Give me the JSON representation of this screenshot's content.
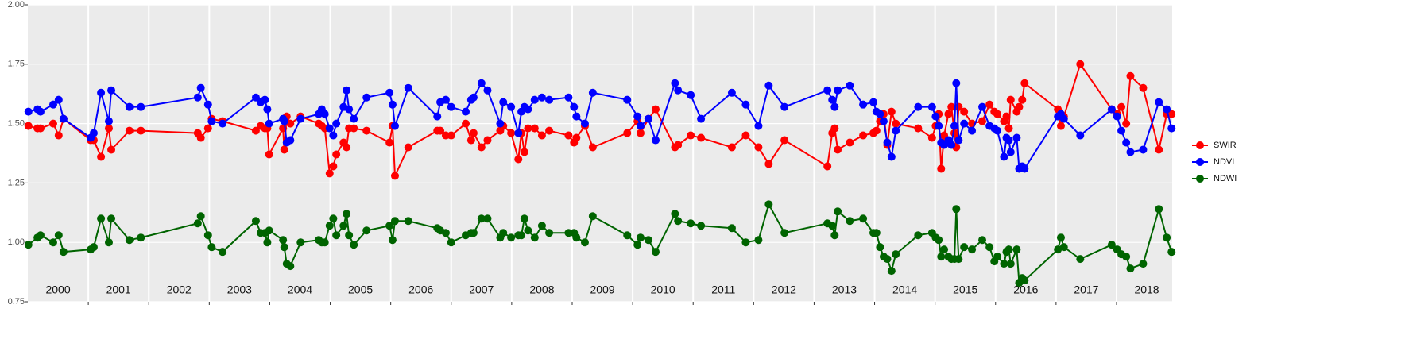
{
  "chart_data": {
    "type": "line",
    "x": [
      2000.01,
      2000.16,
      2000.21,
      2000.42,
      2000.51,
      2000.59,
      2001.04,
      2001.09,
      2001.21,
      2001.34,
      2001.38,
      2001.68,
      2001.87,
      2002.81,
      2002.86,
      2002.98,
      2003.04,
      2003.22,
      2003.77,
      2003.85,
      2003.92,
      2003.96,
      2003.99,
      2004.22,
      2004.24,
      2004.28,
      2004.34,
      2004.51,
      2004.81,
      2004.86,
      2004.91,
      2004.99,
      2005.05,
      2005.1,
      2005.22,
      2005.27,
      2005.31,
      2005.39,
      2005.6,
      2005.98,
      2006.03,
      2006.07,
      2006.29,
      2006.77,
      2006.82,
      2006.91,
      2007.0,
      2007.24,
      2007.33,
      2007.37,
      2007.5,
      2007.6,
      2007.81,
      2007.86,
      2007.99,
      2008.11,
      2008.16,
      2008.21,
      2008.27,
      2008.38,
      2008.5,
      2008.62,
      2008.94,
      2009.03,
      2009.07,
      2009.21,
      2009.34,
      2009.91,
      2010.08,
      2010.13,
      2010.26,
      2010.38,
      2010.7,
      2010.75,
      2010.96,
      2011.13,
      2011.64,
      2011.87,
      2012.08,
      2012.25,
      2012.51,
      2013.22,
      2013.3,
      2013.34,
      2013.39,
      2013.59,
      2013.81,
      2013.98,
      2014.03,
      2014.09,
      2014.15,
      2014.21,
      2014.28,
      2014.35,
      2014.72,
      2014.95,
      2015.01,
      2015.06,
      2015.1,
      2015.15,
      2015.22,
      2015.27,
      2015.32,
      2015.35,
      2015.39,
      2015.48,
      2015.61,
      2015.78,
      2015.9,
      2015.98,
      2016.03,
      2016.14,
      2016.18,
      2016.22,
      2016.25,
      2016.35,
      2016.39,
      2016.44,
      2016.48,
      2017.03,
      2017.08,
      2017.13,
      2017.4,
      2017.92,
      2018.01,
      2018.08,
      2018.16,
      2018.23,
      2018.44,
      2018.7,
      2018.83,
      2018.91
    ],
    "series": [
      {
        "name": "SWIR",
        "color": "#ff0000",
        "values": [
          1.49,
          1.48,
          1.48,
          1.5,
          1.45,
          1.52,
          1.43,
          1.43,
          1.36,
          1.48,
          1.39,
          1.47,
          1.47,
          1.46,
          1.44,
          1.48,
          1.52,
          1.51,
          1.47,
          1.49,
          1.48,
          1.48,
          1.37,
          1.48,
          1.39,
          1.53,
          1.5,
          1.53,
          1.5,
          1.49,
          1.48,
          1.29,
          1.32,
          1.37,
          1.42,
          1.4,
          1.48,
          1.48,
          1.47,
          1.42,
          1.49,
          1.28,
          1.4,
          1.47,
          1.47,
          1.45,
          1.45,
          1.5,
          1.43,
          1.46,
          1.4,
          1.43,
          1.47,
          1.49,
          1.46,
          1.35,
          1.46,
          1.38,
          1.48,
          1.48,
          1.45,
          1.47,
          1.45,
          1.42,
          1.44,
          1.49,
          1.4,
          1.46,
          1.51,
          1.46,
          1.52,
          1.56,
          1.4,
          1.41,
          1.45,
          1.44,
          1.4,
          1.45,
          1.4,
          1.33,
          1.43,
          1.32,
          1.46,
          1.48,
          1.39,
          1.42,
          1.45,
          1.46,
          1.47,
          1.51,
          1.54,
          1.41,
          1.55,
          1.5,
          1.48,
          1.44,
          1.49,
          1.54,
          1.31,
          1.45,
          1.54,
          1.57,
          1.46,
          1.4,
          1.57,
          1.55,
          1.5,
          1.51,
          1.58,
          1.55,
          1.54,
          1.51,
          1.53,
          1.48,
          1.6,
          1.55,
          1.57,
          1.6,
          1.67,
          1.56,
          1.49,
          1.53,
          1.75,
          1.56,
          1.54,
          1.57,
          1.5,
          1.7,
          1.65,
          1.39,
          1.54,
          1.54
        ]
      },
      {
        "name": "NDVI",
        "color": "#0000ff",
        "values": [
          1.55,
          1.56,
          1.55,
          1.58,
          1.6,
          1.52,
          1.44,
          1.46,
          1.63,
          1.51,
          1.64,
          1.57,
          1.57,
          1.61,
          1.65,
          1.58,
          1.51,
          1.5,
          1.61,
          1.59,
          1.6,
          1.56,
          1.5,
          1.52,
          1.51,
          1.42,
          1.43,
          1.52,
          1.54,
          1.56,
          1.54,
          1.48,
          1.45,
          1.5,
          1.57,
          1.64,
          1.56,
          1.52,
          1.61,
          1.63,
          1.58,
          1.49,
          1.65,
          1.53,
          1.59,
          1.6,
          1.57,
          1.55,
          1.6,
          1.61,
          1.67,
          1.64,
          1.5,
          1.59,
          1.57,
          1.46,
          1.55,
          1.57,
          1.56,
          1.6,
          1.61,
          1.6,
          1.61,
          1.57,
          1.53,
          1.5,
          1.63,
          1.6,
          1.53,
          1.49,
          1.52,
          1.43,
          1.67,
          1.64,
          1.62,
          1.52,
          1.63,
          1.58,
          1.49,
          1.66,
          1.57,
          1.64,
          1.6,
          1.57,
          1.64,
          1.66,
          1.58,
          1.59,
          1.55,
          1.54,
          1.51,
          1.42,
          1.36,
          1.47,
          1.57,
          1.57,
          1.53,
          1.49,
          1.42,
          1.41,
          1.43,
          1.41,
          1.49,
          1.67,
          1.43,
          1.5,
          1.47,
          1.57,
          1.49,
          1.48,
          1.47,
          1.36,
          1.44,
          1.43,
          1.38,
          1.44,
          1.31,
          1.32,
          1.31,
          1.53,
          1.54,
          1.52,
          1.45,
          1.56,
          1.53,
          1.47,
          1.42,
          1.38,
          1.39,
          1.59,
          1.56,
          1.48
        ]
      },
      {
        "name": "NDWI",
        "color": "#006400",
        "values": [
          0.99,
          1.02,
          1.03,
          1.0,
          1.03,
          0.96,
          0.97,
          0.98,
          1.1,
          1.0,
          1.1,
          1.01,
          1.02,
          1.08,
          1.11,
          1.03,
          0.98,
          0.96,
          1.09,
          1.04,
          1.04,
          1.0,
          1.05,
          1.01,
          0.98,
          0.91,
          0.9,
          1.0,
          1.01,
          1.0,
          1.0,
          1.07,
          1.1,
          1.03,
          1.07,
          1.12,
          1.03,
          0.99,
          1.05,
          1.07,
          1.01,
          1.09,
          1.09,
          1.06,
          1.05,
          1.04,
          1.0,
          1.03,
          1.04,
          1.04,
          1.1,
          1.1,
          1.02,
          1.04,
          1.02,
          1.03,
          1.03,
          1.1,
          1.05,
          1.02,
          1.07,
          1.04,
          1.04,
          1.04,
          1.02,
          1.0,
          1.11,
          1.03,
          0.99,
          1.02,
          1.01,
          0.96,
          1.12,
          1.09,
          1.08,
          1.07,
          1.06,
          1.0,
          1.01,
          1.16,
          1.04,
          1.08,
          1.07,
          1.03,
          1.13,
          1.09,
          1.1,
          1.04,
          1.04,
          0.98,
          0.94,
          0.93,
          0.88,
          0.95,
          1.03,
          1.04,
          1.02,
          1.01,
          0.94,
          0.97,
          0.94,
          0.93,
          0.93,
          1.14,
          0.93,
          0.98,
          0.97,
          1.01,
          0.98,
          0.92,
          0.94,
          0.91,
          0.96,
          0.97,
          0.91,
          0.97,
          0.83,
          0.85,
          0.84,
          0.97,
          1.02,
          0.98,
          0.93,
          0.99,
          0.97,
          0.95,
          0.94,
          0.89,
          0.91,
          1.14,
          1.02,
          0.96
        ]
      }
    ],
    "categories": [
      "2000",
      "2001",
      "2002",
      "2003",
      "2004",
      "2005",
      "2006",
      "2007",
      "2008",
      "2009",
      "2010",
      "2011",
      "2012",
      "2013",
      "2014",
      "2015",
      "2016",
      "2017",
      "2018"
    ],
    "xlim": [
      2000,
      2018.92
    ],
    "xticks": [
      2001,
      2002,
      2003,
      2004,
      2005,
      2006,
      2007,
      2008,
      2009,
      2010,
      2011,
      2012,
      2013,
      2014,
      2015,
      2016,
      2017,
      2018
    ],
    "ylim": [
      0.75,
      2.0
    ],
    "yticks": [
      {
        "value": 0.75,
        "label": "0.75"
      },
      {
        "value": 1,
        "label": "1.00"
      },
      {
        "value": 1.25,
        "label": "1.25"
      },
      {
        "value": 1.5,
        "label": "1.50"
      },
      {
        "value": 1.75,
        "label": "1.75"
      },
      {
        "value": 2,
        "label": "2.00"
      }
    ],
    "grid": true,
    "legend": "right"
  }
}
